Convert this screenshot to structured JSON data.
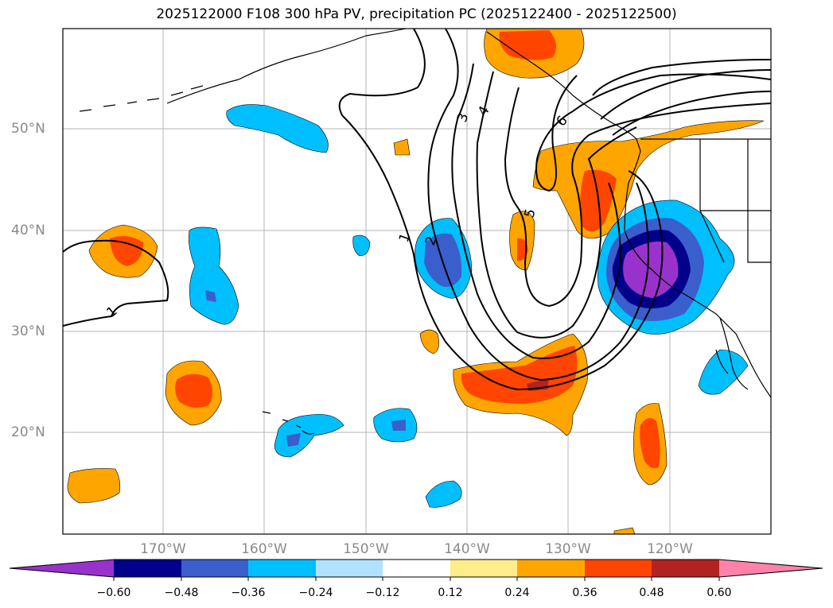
{
  "title": "2025122000 F108 300 hPa PV, precipitation PC (2025122400 - 2025122500)",
  "lat_labels": [
    "50°N",
    "40°N",
    "30°N",
    "20°N"
  ],
  "lon_labels": [
    "170°W",
    "160°W",
    "150°W",
    "140°W",
    "130°W",
    "120°W"
  ],
  "pv_contour_labels": [
    "1",
    "1",
    "2",
    "3",
    "4",
    "5",
    "6"
  ],
  "colorbar": {
    "ticks": [
      "−0.60",
      "−0.48",
      "−0.36",
      "−0.24",
      "−0.12",
      "0.12",
      "0.24",
      "0.36",
      "0.48",
      "0.60"
    ],
    "colors": [
      "#9932cc",
      "#00008b",
      "#3a5fcd",
      "#00bfff",
      "#b0e2ff",
      "#ffffff",
      "#ffec8b",
      "#ffa500",
      "#ff4500",
      "#b22222",
      "#ff82ab"
    ]
  }
}
